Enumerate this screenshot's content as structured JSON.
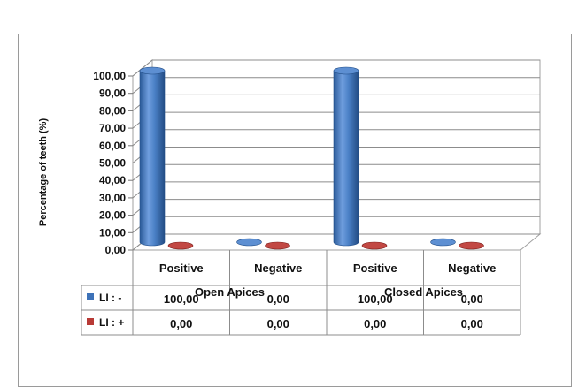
{
  "chart_data": {
    "type": "bar",
    "style": "3d-cylinder",
    "ylabel": "Percentage of teeth (%)",
    "ylim": [
      0,
      100
    ],
    "y_ticks": [
      "0,00",
      "10,00",
      "20,00",
      "30,00",
      "40,00",
      "50,00",
      "60,00",
      "70,00",
      "80,00",
      "90,00",
      "100,00"
    ],
    "grid": true,
    "groups": [
      "Open Apices",
      "Closed Apices"
    ],
    "categories": [
      "Positive",
      "Negative",
      "Positive",
      "Negative"
    ],
    "series": [
      {
        "name": "LI : -",
        "color": "#3d72b8",
        "values": [
          100,
          0,
          100,
          0
        ],
        "labels": [
          "100,00",
          "0,00",
          "100,00",
          "0,00"
        ]
      },
      {
        "name": "LI : +",
        "color": "#b83a36",
        "values": [
          0,
          0,
          0,
          0
        ],
        "labels": [
          "0,00",
          "0,00",
          "0,00",
          "0,00"
        ]
      }
    ],
    "legend_placement": "data-table"
  }
}
